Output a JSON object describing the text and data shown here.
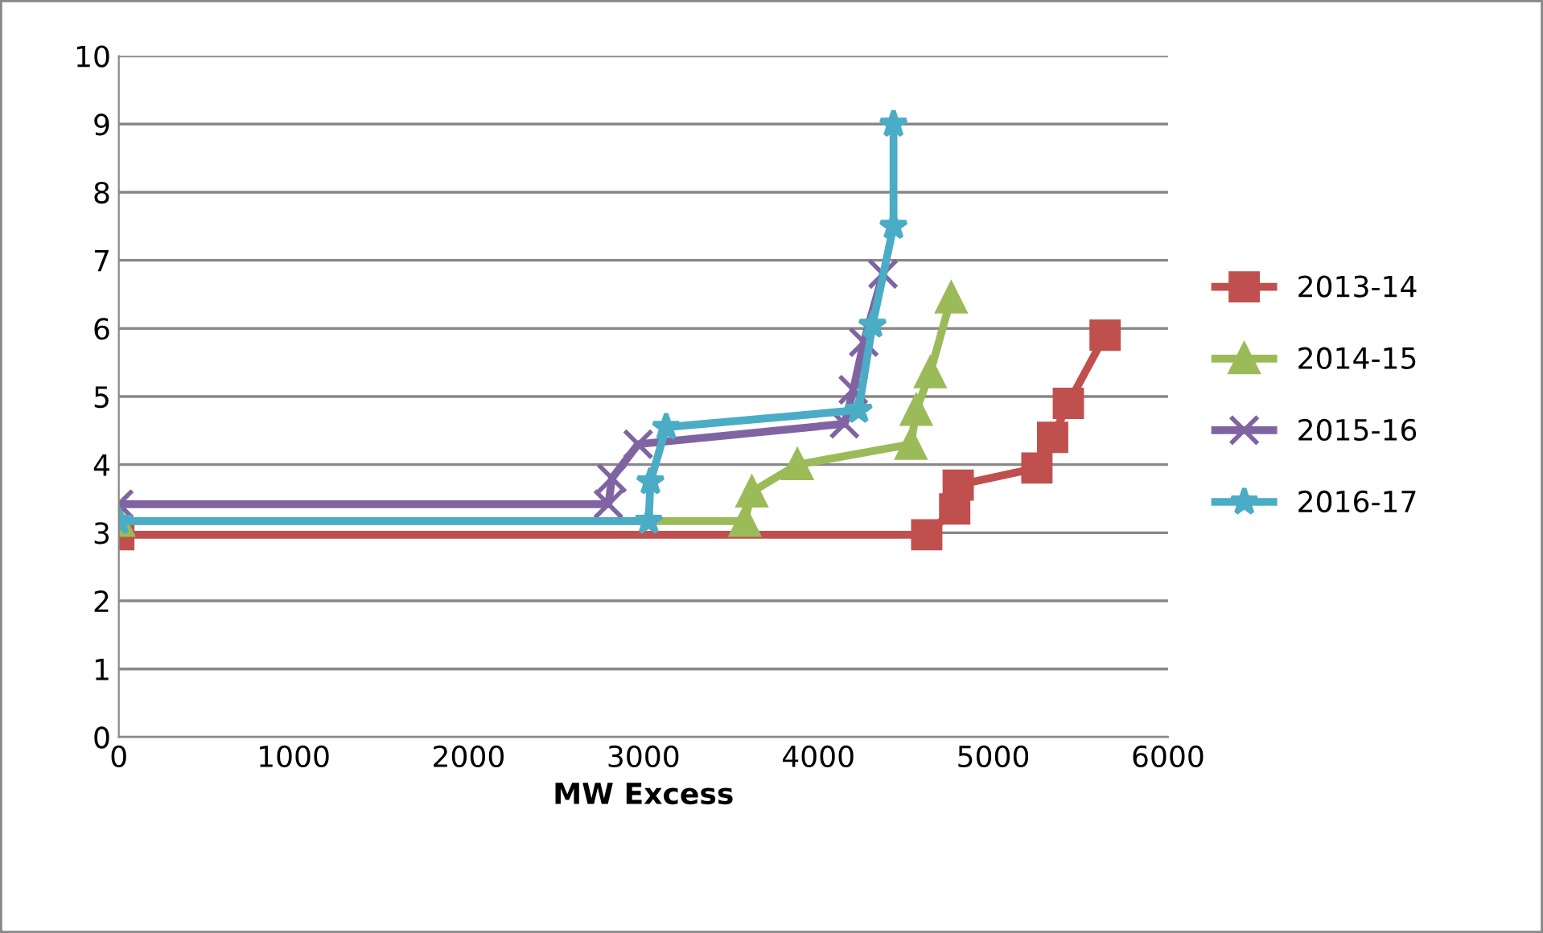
{
  "chart_data": {
    "type": "line",
    "xlabel": "MW Excess",
    "xlim": [
      0,
      6000
    ],
    "xticks": [
      0,
      1000,
      2000,
      3000,
      4000,
      5000,
      6000
    ],
    "ylim": [
      0,
      10
    ],
    "yticks": [
      0,
      1,
      2,
      3,
      4,
      5,
      6,
      7,
      8,
      9,
      10
    ],
    "grid": "y",
    "legend": "right",
    "series": [
      {
        "name": "2013-14",
        "color": "#c0504d",
        "marker": "square",
        "x": [
          0,
          4620,
          4780,
          4800,
          5250,
          5340,
          5430,
          5640
        ],
        "values": [
          2.97,
          2.97,
          3.35,
          3.7,
          3.95,
          4.4,
          4.9,
          5.9
        ]
      },
      {
        "name": "2014-15",
        "color": "#9bbb59",
        "marker": "triangle",
        "x": [
          0,
          3580,
          3620,
          3880,
          4530,
          4560,
          4640,
          4760
        ],
        "values": [
          3.17,
          3.17,
          3.6,
          4.0,
          4.3,
          4.8,
          5.35,
          6.45
        ]
      },
      {
        "name": "2015-16",
        "color": "#8064a2",
        "marker": "cross",
        "x": [
          0,
          2800,
          2820,
          2970,
          4150,
          4200,
          4260,
          4370
        ],
        "values": [
          3.42,
          3.42,
          3.8,
          4.3,
          4.6,
          5.1,
          5.8,
          6.8
        ]
      },
      {
        "name": "2016-17",
        "color": "#4bacc6",
        "marker": "star",
        "x": [
          0,
          3030,
          3040,
          3130,
          4230,
          4310,
          4430,
          4430
        ],
        "values": [
          3.17,
          3.17,
          3.75,
          4.55,
          4.8,
          6.05,
          7.5,
          9.0
        ]
      }
    ]
  }
}
